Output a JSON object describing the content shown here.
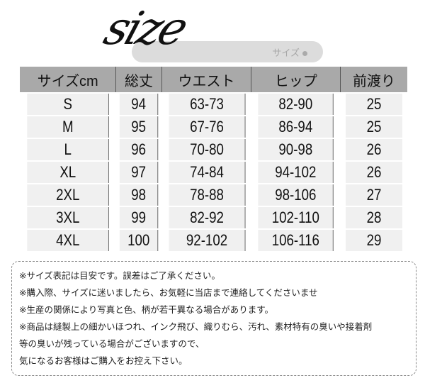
{
  "title": {
    "script_text": "size",
    "subtitle": "サイズ"
  },
  "table": {
    "headers": [
      "サイズcm",
      "総丈",
      "ウエスト",
      "ヒップ",
      "前渡り"
    ],
    "rows": [
      [
        "S",
        "94",
        "63-73",
        "82-90",
        "25"
      ],
      [
        "M",
        "95",
        "67-76",
        "86-94",
        "25"
      ],
      [
        "L",
        "96",
        "70-80",
        "90-98",
        "26"
      ],
      [
        "XL",
        "97",
        "74-84",
        "94-102",
        "26"
      ],
      [
        "2XL",
        "98",
        "78-88",
        "98-106",
        "27"
      ],
      [
        "3XL",
        "99",
        "82-92",
        "102-110",
        "28"
      ],
      [
        "4XL",
        "100",
        "92-102",
        "106-116",
        "29"
      ]
    ]
  },
  "notes": [
    "※サイズ表記は目安です。誤差はご了承ください。",
    "※購入際、サイズに迷いましたら、お気軽に当店まで連絡してくださいませ",
    "※生産の関係により写真と色、柄が若干異なる場合があります。",
    "※商品は縫製上の細かいほつれ、インク飛び、織りむら、汚れ、素材特有の臭いや接着剤",
    "等の臭いが残っている場合がございますので、",
    "気になるお客様はご購入をお控え下さい。"
  ],
  "colors": {
    "header_bg": "#a9a9a9",
    "row_bg": "#f0f0f0",
    "pill_bg": "#dcdcdc"
  }
}
